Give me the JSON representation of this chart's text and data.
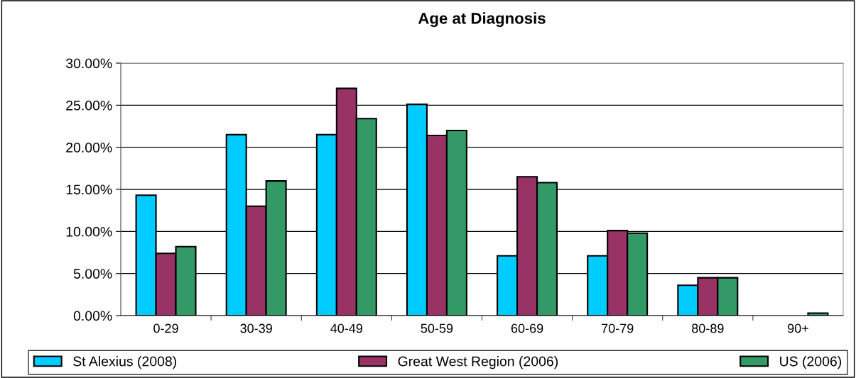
{
  "chart_data": {
    "type": "bar",
    "title": "Age at Diagnosis",
    "categories": [
      "0-29",
      "30-39",
      "40-49",
      "50-59",
      "60-69",
      "70-79",
      "80-89",
      "90+"
    ],
    "series": [
      {
        "name": "St Alexius (2008)",
        "color": "#00ccff",
        "values": [
          14.3,
          21.5,
          21.5,
          25.1,
          7.1,
          7.1,
          3.6,
          null
        ]
      },
      {
        "name": "Great West Region (2006)",
        "color": "#993366",
        "values": [
          7.4,
          13.0,
          27.0,
          21.4,
          16.5,
          10.1,
          4.5,
          null
        ]
      },
      {
        "name": "US (2006)",
        "color": "#339966",
        "values": [
          8.2,
          16.0,
          23.4,
          22.0,
          15.8,
          9.8,
          4.5,
          0.3
        ]
      }
    ],
    "ylim": [
      0,
      30
    ],
    "yticks": [
      {
        "value": 0,
        "label": "0.00%"
      },
      {
        "value": 5,
        "label": "5.00%"
      },
      {
        "value": 10,
        "label": "10.00%"
      },
      {
        "value": 15,
        "label": "15.00%"
      },
      {
        "value": 20,
        "label": "20.00%"
      },
      {
        "value": 25,
        "label": "25.00%"
      },
      {
        "value": 30,
        "label": "30.00%"
      }
    ],
    "grid": "y",
    "legend": "bottom"
  }
}
